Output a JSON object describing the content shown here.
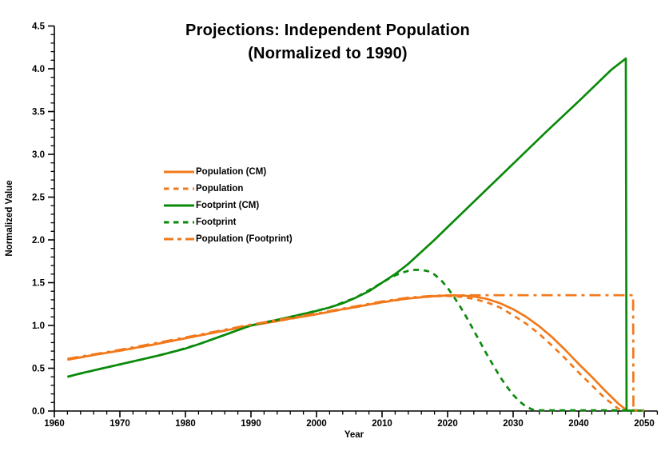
{
  "title": {
    "line1": "Projections: Independent Population",
    "line2": "(Normalized to 1990)"
  },
  "chart_data": {
    "type": "line",
    "title": "Projections: Independent Population (Normalized to 1990)",
    "xlabel": "Year",
    "ylabel": "Normalized Value",
    "xlim": [
      1960,
      2052
    ],
    "ylim": [
      0,
      4.5
    ],
    "x_major_ticks": [
      1960,
      1970,
      1980,
      1990,
      2000,
      2010,
      2020,
      2030,
      2040,
      2050
    ],
    "x_minor_step": 2,
    "y_major_ticks": [
      0.0,
      0.5,
      1.0,
      1.5,
      2.0,
      2.5,
      3.0,
      3.5,
      4.0,
      4.5
    ],
    "y_minor_step": 0.1,
    "grid": false,
    "legend_position": "upper-left-inside",
    "colors": {
      "orange": "#f2791b",
      "green": "#0a8a0a",
      "axis": "#000000"
    },
    "series": [
      {
        "name": "Population (CM)",
        "color": "#f2791b",
        "style": "solid",
        "points": [
          [
            1962,
            0.6
          ],
          [
            1964,
            0.625
          ],
          [
            1966,
            0.655
          ],
          [
            1968,
            0.68
          ],
          [
            1970,
            0.705
          ],
          [
            1972,
            0.735
          ],
          [
            1974,
            0.76
          ],
          [
            1976,
            0.79
          ],
          [
            1978,
            0.82
          ],
          [
            1980,
            0.85
          ],
          [
            1982,
            0.88
          ],
          [
            1984,
            0.91
          ],
          [
            1986,
            0.94
          ],
          [
            1988,
            0.97
          ],
          [
            1990,
            1.0
          ],
          [
            1992,
            1.025
          ],
          [
            1994,
            1.05
          ],
          [
            1996,
            1.08
          ],
          [
            1998,
            1.105
          ],
          [
            2000,
            1.13
          ],
          [
            2002,
            1.16
          ],
          [
            2004,
            1.19
          ],
          [
            2006,
            1.215
          ],
          [
            2008,
            1.245
          ],
          [
            2010,
            1.27
          ],
          [
            2012,
            1.295
          ],
          [
            2014,
            1.315
          ],
          [
            2016,
            1.33
          ],
          [
            2018,
            1.342
          ],
          [
            2020,
            1.35
          ],
          [
            2022,
            1.35
          ],
          [
            2024,
            1.338
          ],
          [
            2026,
            1.31
          ],
          [
            2028,
            1.26
          ],
          [
            2030,
            1.19
          ],
          [
            2032,
            1.1
          ],
          [
            2034,
            0.99
          ],
          [
            2036,
            0.86
          ],
          [
            2038,
            0.71
          ],
          [
            2040,
            0.55
          ],
          [
            2042,
            0.4
          ],
          [
            2044,
            0.24
          ],
          [
            2046,
            0.09
          ],
          [
            2047.4,
            0.005
          ]
        ]
      },
      {
        "name": "Population",
        "color": "#f2791b",
        "style": "dashed",
        "points": [
          [
            1962,
            0.6
          ],
          [
            1966,
            0.655
          ],
          [
            1970,
            0.705
          ],
          [
            1974,
            0.76
          ],
          [
            1978,
            0.82
          ],
          [
            1982,
            0.88
          ],
          [
            1986,
            0.94
          ],
          [
            1990,
            1.0
          ],
          [
            1994,
            1.05
          ],
          [
            1998,
            1.105
          ],
          [
            2002,
            1.16
          ],
          [
            2006,
            1.215
          ],
          [
            2010,
            1.27
          ],
          [
            2014,
            1.315
          ],
          [
            2018,
            1.342
          ],
          [
            2020,
            1.345
          ],
          [
            2022,
            1.335
          ],
          [
            2024,
            1.31
          ],
          [
            2026,
            1.27
          ],
          [
            2028,
            1.21
          ],
          [
            2030,
            1.12
          ],
          [
            2032,
            1.02
          ],
          [
            2034,
            0.9
          ],
          [
            2036,
            0.76
          ],
          [
            2038,
            0.61
          ],
          [
            2040,
            0.45
          ],
          [
            2042,
            0.3
          ],
          [
            2044,
            0.15
          ],
          [
            2046,
            0.03
          ],
          [
            2046.6,
            0.005
          ]
        ]
      },
      {
        "name": "Footprint (CM)",
        "color": "#0a8a0a",
        "style": "solid",
        "points": [
          [
            1962,
            0.4
          ],
          [
            1964,
            0.44
          ],
          [
            1966,
            0.475
          ],
          [
            1968,
            0.51
          ],
          [
            1970,
            0.545
          ],
          [
            1972,
            0.58
          ],
          [
            1974,
            0.615
          ],
          [
            1976,
            0.65
          ],
          [
            1978,
            0.69
          ],
          [
            1980,
            0.73
          ],
          [
            1982,
            0.78
          ],
          [
            1984,
            0.835
          ],
          [
            1986,
            0.89
          ],
          [
            1988,
            0.945
          ],
          [
            1990,
            1.0
          ],
          [
            1992,
            1.035
          ],
          [
            1994,
            1.065
          ],
          [
            1996,
            1.1
          ],
          [
            1998,
            1.135
          ],
          [
            2000,
            1.17
          ],
          [
            2002,
            1.21
          ],
          [
            2004,
            1.26
          ],
          [
            2006,
            1.325
          ],
          [
            2008,
            1.4
          ],
          [
            2010,
            1.5
          ],
          [
            2012,
            1.6
          ],
          [
            2014,
            1.72
          ],
          [
            2016,
            1.86
          ],
          [
            2018,
            2.0
          ],
          [
            2020,
            2.15
          ],
          [
            2025,
            2.52
          ],
          [
            2030,
            2.89
          ],
          [
            2035,
            3.26
          ],
          [
            2040,
            3.62
          ],
          [
            2045,
            3.99
          ],
          [
            2047.2,
            4.12
          ],
          [
            2047.3,
            0.005
          ],
          [
            2050,
            0.005
          ]
        ]
      },
      {
        "name": "Footprint",
        "color": "#0a8a0a",
        "style": "dashed",
        "points": [
          [
            1962,
            0.4
          ],
          [
            1966,
            0.475
          ],
          [
            1970,
            0.545
          ],
          [
            1974,
            0.615
          ],
          [
            1978,
            0.69
          ],
          [
            1982,
            0.78
          ],
          [
            1986,
            0.89
          ],
          [
            1990,
            1.0
          ],
          [
            1994,
            1.065
          ],
          [
            1998,
            1.135
          ],
          [
            2002,
            1.21
          ],
          [
            2006,
            1.325
          ],
          [
            2010,
            1.5
          ],
          [
            2011,
            1.545
          ],
          [
            2012,
            1.585
          ],
          [
            2013,
            1.615
          ],
          [
            2014,
            1.638
          ],
          [
            2015,
            1.65
          ],
          [
            2016,
            1.65
          ],
          [
            2017,
            1.635
          ],
          [
            2018,
            1.595
          ],
          [
            2019,
            1.53
          ],
          [
            2020,
            1.44
          ],
          [
            2021,
            1.33
          ],
          [
            2022,
            1.21
          ],
          [
            2023,
            1.08
          ],
          [
            2024,
            0.94
          ],
          [
            2025,
            0.8
          ],
          [
            2026,
            0.66
          ],
          [
            2027,
            0.53
          ],
          [
            2028,
            0.4
          ],
          [
            2029,
            0.29
          ],
          [
            2030,
            0.19
          ],
          [
            2031,
            0.11
          ],
          [
            2032,
            0.05
          ],
          [
            2033,
            0.015
          ],
          [
            2034,
            0.008
          ],
          [
            2050,
            0.008
          ]
        ]
      },
      {
        "name": "Population (Footprint)",
        "color": "#f2791b",
        "style": "dashdot",
        "points": [
          [
            1962,
            0.61
          ],
          [
            1970,
            0.715
          ],
          [
            1980,
            0.86
          ],
          [
            1990,
            1.01
          ],
          [
            2000,
            1.14
          ],
          [
            2005,
            1.21
          ],
          [
            2010,
            1.28
          ],
          [
            2014,
            1.325
          ],
          [
            2018,
            1.348
          ],
          [
            2021,
            1.353
          ],
          [
            2048.3,
            1.353
          ],
          [
            2048.35,
            0.006
          ],
          [
            2050,
            0.006
          ]
        ]
      }
    ]
  }
}
